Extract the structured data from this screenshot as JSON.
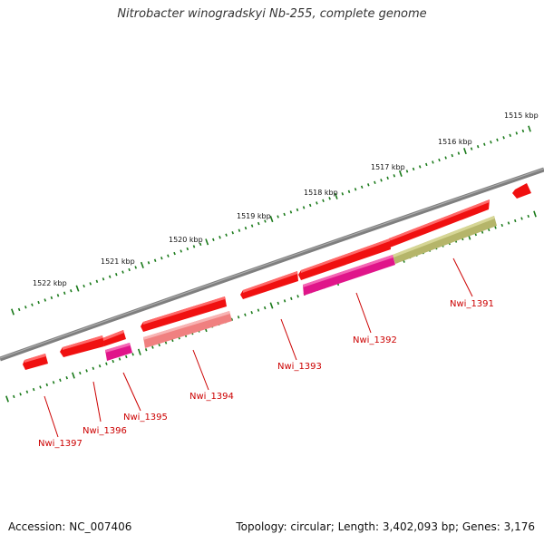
{
  "title": "Nitrobacter winogradskyi Nb-255, complete genome",
  "footer": {
    "accession": "Accession: NC_007406",
    "summary": "Topology: circular; Length: 3,402,093 bp; Genes: 3,176"
  },
  "scale_labels": [
    "1515 kbp",
    "1516 kbp",
    "1517 kbp",
    "1518 kbp",
    "1519 kbp",
    "1520 kbp",
    "1521 kbp",
    "1522 kbp"
  ],
  "gene_labels": [
    "Nwi_1391",
    "Nwi_1392",
    "Nwi_1393",
    "Nwi_1394",
    "Nwi_1395",
    "Nwi_1396",
    "Nwi_1397"
  ],
  "colors": {
    "backbone": "#7f7f7f",
    "ticks": "#1a7a1a",
    "gene_red": "#f01010",
    "gene_magenta": "#e0158a",
    "gene_salmon": "#f08080",
    "gene_olive": "#b5b56a",
    "label_red": "#cc0000"
  }
}
